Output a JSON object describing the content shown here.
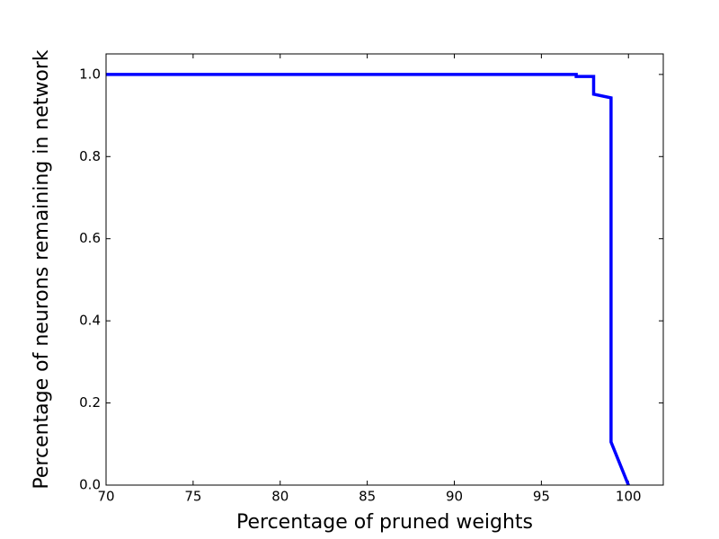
{
  "chart_data": {
    "type": "line",
    "xlabel": "Percentage of pruned weights",
    "ylabel": "Percentage of neurons remaining in network",
    "x": [
      70,
      97,
      97,
      98,
      98,
      99,
      99,
      100
    ],
    "series": [
      {
        "color": "#0000ff",
        "values": [
          1.0,
          1.0,
          0.995,
          0.995,
          0.952,
          0.943,
          0.105,
          0.0
        ]
      }
    ],
    "xlim": [
      70,
      102
    ],
    "ylim": [
      0,
      1.05
    ],
    "xticks": [
      70,
      75,
      80,
      85,
      90,
      95,
      100
    ],
    "yticks": [
      {
        "value": 0,
        "label": "0.0"
      },
      0.2,
      0.4,
      0.6,
      0.8,
      {
        "value": 1,
        "label": "1.0"
      }
    ],
    "grid": false
  }
}
